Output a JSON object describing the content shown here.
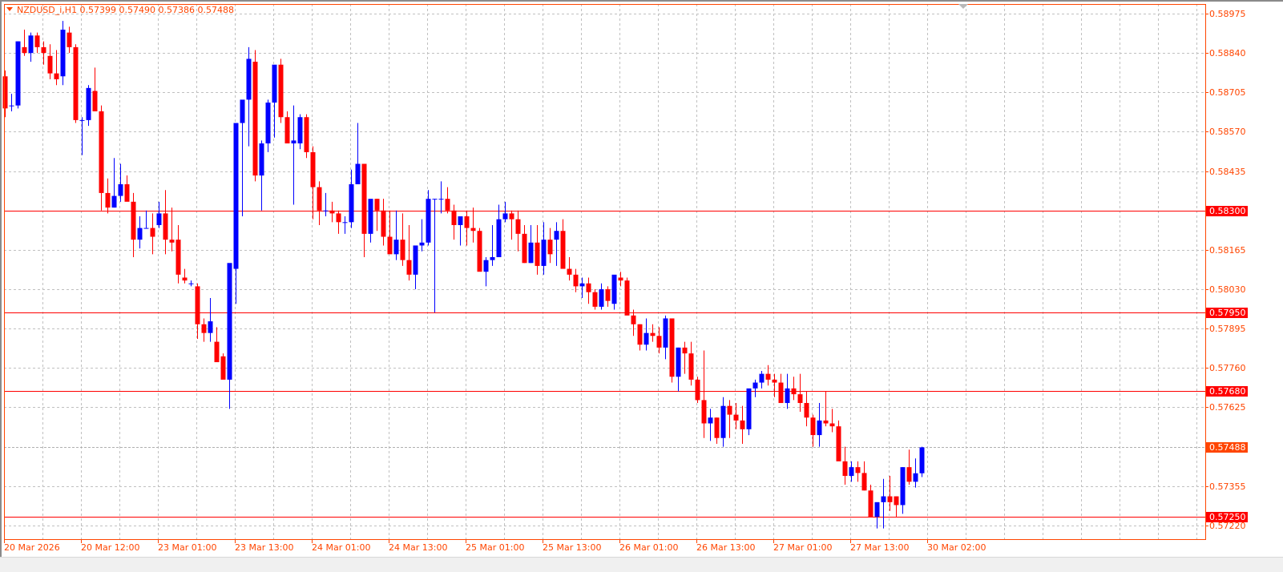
{
  "header": {
    "symbol": "NZDUSD_i,H1",
    "ohlc": "0.57399 0.57490 0.57386 0.57488",
    "title": "NZDUSD_i,H1  0.57399 0.57490 0.57386 0.57488"
  },
  "colors": {
    "axis": "#ff4500",
    "bull": "#0000ff",
    "bear": "#ff0000",
    "grid": "#c0c0c0",
    "level_line": "#ff0000",
    "current_price_tag": "#ff4500",
    "level_tag": "#ff0000"
  },
  "chart_data": {
    "type": "candlestick",
    "title": "NZDUSD_i,H1",
    "xlabel": "",
    "ylabel": "",
    "ylim": [
      0.572,
      0.59
    ],
    "grid": true,
    "y_ticks": [
      "0.58975",
      "0.58840",
      "0.58705",
      "0.58570",
      "0.58435",
      "0.58300",
      "0.58165",
      "0.58030",
      "0.57950",
      "0.57895",
      "0.57760",
      "0.57680",
      "0.57625",
      "0.57488",
      "0.57355",
      "0.57250",
      "0.57220"
    ],
    "x_ticks": [
      "20 Mar 2026",
      "20 Mar 12:00",
      "23 Mar 01:00",
      "23 Mar 13:00",
      "24 Mar 01:00",
      "24 Mar 13:00",
      "25 Mar 01:00",
      "25 Mar 13:00",
      "26 Mar 01:00",
      "26 Mar 13:00",
      "27 Mar 01:00",
      "27 Mar 13:00",
      "30 Mar 02:00"
    ],
    "horizontal_levels": [
      0.583,
      0.5795,
      0.5768,
      0.5725
    ],
    "current_price": 0.57488,
    "candles": [
      [
        0.5876,
        0.5878,
        0.5862,
        0.5865
      ],
      [
        0.5866,
        0.587,
        0.5864,
        0.5866
      ],
      [
        0.5866,
        0.5888,
        0.5865,
        0.5888
      ],
      [
        0.5886,
        0.5892,
        0.5883,
        0.5884
      ],
      [
        0.5884,
        0.5891,
        0.5881,
        0.589
      ],
      [
        0.589,
        0.5891,
        0.5884,
        0.5886
      ],
      [
        0.5886,
        0.5888,
        0.588,
        0.5884
      ],
      [
        0.5883,
        0.5887,
        0.5875,
        0.5877
      ],
      [
        0.5877,
        0.5885,
        0.5873,
        0.5875
      ],
      [
        0.5876,
        0.5895,
        0.5873,
        0.5892
      ],
      [
        0.5891,
        0.5893,
        0.5884,
        0.5886
      ],
      [
        0.5886,
        0.5887,
        0.586,
        0.5861
      ],
      [
        0.5861,
        0.5862,
        0.5849,
        0.5861
      ],
      [
        0.5861,
        0.5873,
        0.5859,
        0.5872
      ],
      [
        0.5871,
        0.5879,
        0.5865,
        0.5864
      ],
      [
        0.5864,
        0.5866,
        0.583,
        0.5836
      ],
      [
        0.5836,
        0.5841,
        0.5829,
        0.5831
      ],
      [
        0.5831,
        0.5848,
        0.5831,
        0.5835
      ],
      [
        0.5835,
        0.5846,
        0.5833,
        0.5839
      ],
      [
        0.5839,
        0.5842,
        0.5834,
        0.5833
      ],
      [
        0.5833,
        0.5836,
        0.5814,
        0.582
      ],
      [
        0.582,
        0.5828,
        0.5817,
        0.5824
      ],
      [
        0.5824,
        0.583,
        0.5824,
        0.5824
      ],
      [
        0.5824,
        0.5829,
        0.5815,
        0.5821
      ],
      [
        0.5825,
        0.5833,
        0.5824,
        0.5829
      ],
      [
        0.5829,
        0.5837,
        0.5815,
        0.582
      ],
      [
        0.582,
        0.5831,
        0.5816,
        0.5819
      ],
      [
        0.582,
        0.5825,
        0.5805,
        0.5808
      ],
      [
        0.5807,
        0.581,
        0.5805,
        0.5806
      ],
      [
        0.5805,
        0.5806,
        0.5804,
        0.5805
      ],
      [
        0.5804,
        0.5805,
        0.5786,
        0.5791
      ],
      [
        0.5791,
        0.5793,
        0.5785,
        0.5788
      ],
      [
        0.5788,
        0.58,
        0.5785,
        0.5792
      ],
      [
        0.5785,
        0.579,
        0.578,
        0.5778
      ],
      [
        0.578,
        0.5781,
        0.5773,
        0.5772
      ],
      [
        0.5772,
        0.5796,
        0.5762,
        0.5812
      ],
      [
        0.581,
        0.5845,
        0.5798,
        0.586
      ],
      [
        0.586,
        0.5865,
        0.5828,
        0.5868
      ],
      [
        0.5868,
        0.5886,
        0.5852,
        0.5882
      ],
      [
        0.5881,
        0.5885,
        0.584,
        0.5842
      ],
      [
        0.5842,
        0.5854,
        0.583,
        0.5853
      ],
      [
        0.5853,
        0.5868,
        0.585,
        0.5867
      ],
      [
        0.5867,
        0.5875,
        0.5855,
        0.588
      ],
      [
        0.588,
        0.5882,
        0.586,
        0.5862
      ],
      [
        0.5862,
        0.5864,
        0.5854,
        0.5853
      ],
      [
        0.5853,
        0.5866,
        0.5832,
        0.5854
      ],
      [
        0.5853,
        0.5863,
        0.5851,
        0.5862
      ],
      [
        0.5862,
        0.5863,
        0.5848,
        0.585
      ],
      [
        0.585,
        0.5852,
        0.5827,
        0.5838
      ],
      [
        0.5838,
        0.584,
        0.5825,
        0.583
      ],
      [
        0.583,
        0.5836,
        0.5828,
        0.583
      ],
      [
        0.583,
        0.5833,
        0.5826,
        0.5829
      ],
      [
        0.5829,
        0.583,
        0.5822,
        0.5826
      ],
      [
        0.5826,
        0.5828,
        0.5822,
        0.5826
      ],
      [
        0.5826,
        0.5844,
        0.5824,
        0.5839
      ],
      [
        0.5839,
        0.586,
        0.584,
        0.5846
      ],
      [
        0.5846,
        0.5846,
        0.5814,
        0.5822
      ],
      [
        0.5822,
        0.583,
        0.5819,
        0.5834
      ],
      [
        0.5834,
        0.5834,
        0.5823,
        0.583
      ],
      [
        0.583,
        0.5834,
        0.5818,
        0.5821
      ],
      [
        0.5821,
        0.583,
        0.5816,
        0.5815
      ],
      [
        0.5815,
        0.583,
        0.5813,
        0.582
      ],
      [
        0.582,
        0.5829,
        0.5811,
        0.5813
      ],
      [
        0.5813,
        0.5825,
        0.5806,
        0.5808
      ],
      [
        0.5808,
        0.5817,
        0.5803,
        0.5818
      ],
      [
        0.5818,
        0.5827,
        0.5816,
        0.5819
      ],
      [
        0.5819,
        0.5837,
        0.5818,
        0.5834
      ],
      [
        0.5834,
        0.5834,
        0.5795,
        0.5834
      ],
      [
        0.5834,
        0.584,
        0.5829,
        0.5834
      ],
      [
        0.5834,
        0.5838,
        0.5829,
        0.583
      ],
      [
        0.583,
        0.5832,
        0.582,
        0.5825
      ],
      [
        0.5825,
        0.5827,
        0.5818,
        0.5828
      ],
      [
        0.5828,
        0.583,
        0.5818,
        0.5824
      ],
      [
        0.5824,
        0.5831,
        0.5819,
        0.5823
      ],
      [
        0.5823,
        0.5824,
        0.5814,
        0.5809
      ],
      [
        0.5809,
        0.5814,
        0.5804,
        0.5813
      ],
      [
        0.5813,
        0.5825,
        0.5811,
        0.5814
      ],
      [
        0.5814,
        0.5832,
        0.5816,
        0.5827
      ],
      [
        0.5827,
        0.5833,
        0.5826,
        0.5829
      ],
      [
        0.5829,
        0.583,
        0.582,
        0.5827
      ],
      [
        0.5827,
        0.583,
        0.5816,
        0.5822
      ],
      [
        0.5822,
        0.5825,
        0.5812,
        0.5812
      ],
      [
        0.5812,
        0.5825,
        0.5812,
        0.5819
      ],
      [
        0.5819,
        0.5825,
        0.5808,
        0.5811
      ],
      [
        0.5811,
        0.5826,
        0.5808,
        0.582
      ],
      [
        0.582,
        0.5824,
        0.5812,
        0.5815
      ],
      [
        0.582,
        0.5826,
        0.5811,
        0.5823
      ],
      [
        0.5823,
        0.5827,
        0.5814,
        0.581
      ],
      [
        0.581,
        0.5814,
        0.5806,
        0.5808
      ],
      [
        0.5808,
        0.581,
        0.5802,
        0.5804
      ],
      [
        0.5804,
        0.5807,
        0.58,
        0.5805
      ],
      [
        0.5805,
        0.5807,
        0.5798,
        0.5802
      ],
      [
        0.5802,
        0.5803,
        0.5796,
        0.5797
      ],
      [
        0.5797,
        0.5805,
        0.5796,
        0.5803
      ],
      [
        0.5803,
        0.5804,
        0.5797,
        0.5799
      ],
      [
        0.5798,
        0.5807,
        0.5796,
        0.5808
      ],
      [
        0.5807,
        0.5809,
        0.5804,
        0.5806
      ],
      [
        0.5806,
        0.5807,
        0.5796,
        0.5794
      ],
      [
        0.5794,
        0.5796,
        0.5787,
        0.5791
      ],
      [
        0.5791,
        0.5791,
        0.5782,
        0.5784
      ],
      [
        0.5784,
        0.5793,
        0.5782,
        0.5788
      ],
      [
        0.5788,
        0.5791,
        0.5785,
        0.5787
      ],
      [
        0.5787,
        0.579,
        0.5781,
        0.5783
      ],
      [
        0.5783,
        0.5794,
        0.5779,
        0.5793
      ],
      [
        0.5793,
        0.5793,
        0.5771,
        0.5773
      ],
      [
        0.5773,
        0.5783,
        0.5768,
        0.5783
      ],
      [
        0.5783,
        0.5785,
        0.5774,
        0.5781
      ],
      [
        0.5781,
        0.5785,
        0.577,
        0.5772
      ],
      [
        0.5772,
        0.5773,
        0.5764,
        0.5765
      ],
      [
        0.5765,
        0.5782,
        0.5752,
        0.5757
      ],
      [
        0.5757,
        0.5762,
        0.5751,
        0.5759
      ],
      [
        0.5759,
        0.5759,
        0.575,
        0.5752
      ],
      [
        0.5752,
        0.5766,
        0.5749,
        0.5763
      ],
      [
        0.5763,
        0.5765,
        0.5752,
        0.576
      ],
      [
        0.576,
        0.5764,
        0.5755,
        0.5758
      ],
      [
        0.5758,
        0.5763,
        0.575,
        0.5755
      ],
      [
        0.5755,
        0.5768,
        0.5753,
        0.5769
      ],
      [
        0.5769,
        0.5772,
        0.5766,
        0.5771
      ],
      [
        0.5771,
        0.5775,
        0.5769,
        0.5774
      ],
      [
        0.5774,
        0.5777,
        0.577,
        0.5772
      ],
      [
        0.5772,
        0.5774,
        0.5766,
        0.5771
      ],
      [
        0.5771,
        0.5774,
        0.5764,
        0.5764
      ],
      [
        0.5764,
        0.5774,
        0.5762,
        0.5769
      ],
      [
        0.5769,
        0.5773,
        0.5765,
        0.5767
      ],
      [
        0.5767,
        0.5774,
        0.5761,
        0.5764
      ],
      [
        0.5764,
        0.5768,
        0.5756,
        0.5759
      ],
      [
        0.5759,
        0.576,
        0.5749,
        0.5753
      ],
      [
        0.5753,
        0.5764,
        0.5749,
        0.5758
      ],
      [
        0.5758,
        0.5768,
        0.5756,
        0.5757
      ],
      [
        0.5757,
        0.5762,
        0.5754,
        0.5756
      ],
      [
        0.5756,
        0.5758,
        0.5748,
        0.5744
      ],
      [
        0.5744,
        0.5749,
        0.5736,
        0.5739
      ],
      [
        0.5739,
        0.5744,
        0.5737,
        0.5742
      ],
      [
        0.5742,
        0.5744,
        0.5737,
        0.574
      ],
      [
        0.574,
        0.5744,
        0.5734,
        0.5734
      ],
      [
        0.5734,
        0.5736,
        0.5726,
        0.5725
      ],
      [
        0.5725,
        0.5729,
        0.5721,
        0.573
      ],
      [
        0.573,
        0.5738,
        0.5721,
        0.5732
      ],
      [
        0.5732,
        0.5739,
        0.5727,
        0.573
      ],
      [
        0.5732,
        0.5732,
        0.5725,
        0.5729
      ],
      [
        0.5729,
        0.5742,
        0.5726,
        0.5742
      ],
      [
        0.5742,
        0.5748,
        0.5736,
        0.5737
      ],
      [
        0.5737,
        0.5745,
        0.5735,
        0.57399
      ],
      [
        0.57399,
        0.5749,
        0.57386,
        0.57488
      ]
    ]
  }
}
